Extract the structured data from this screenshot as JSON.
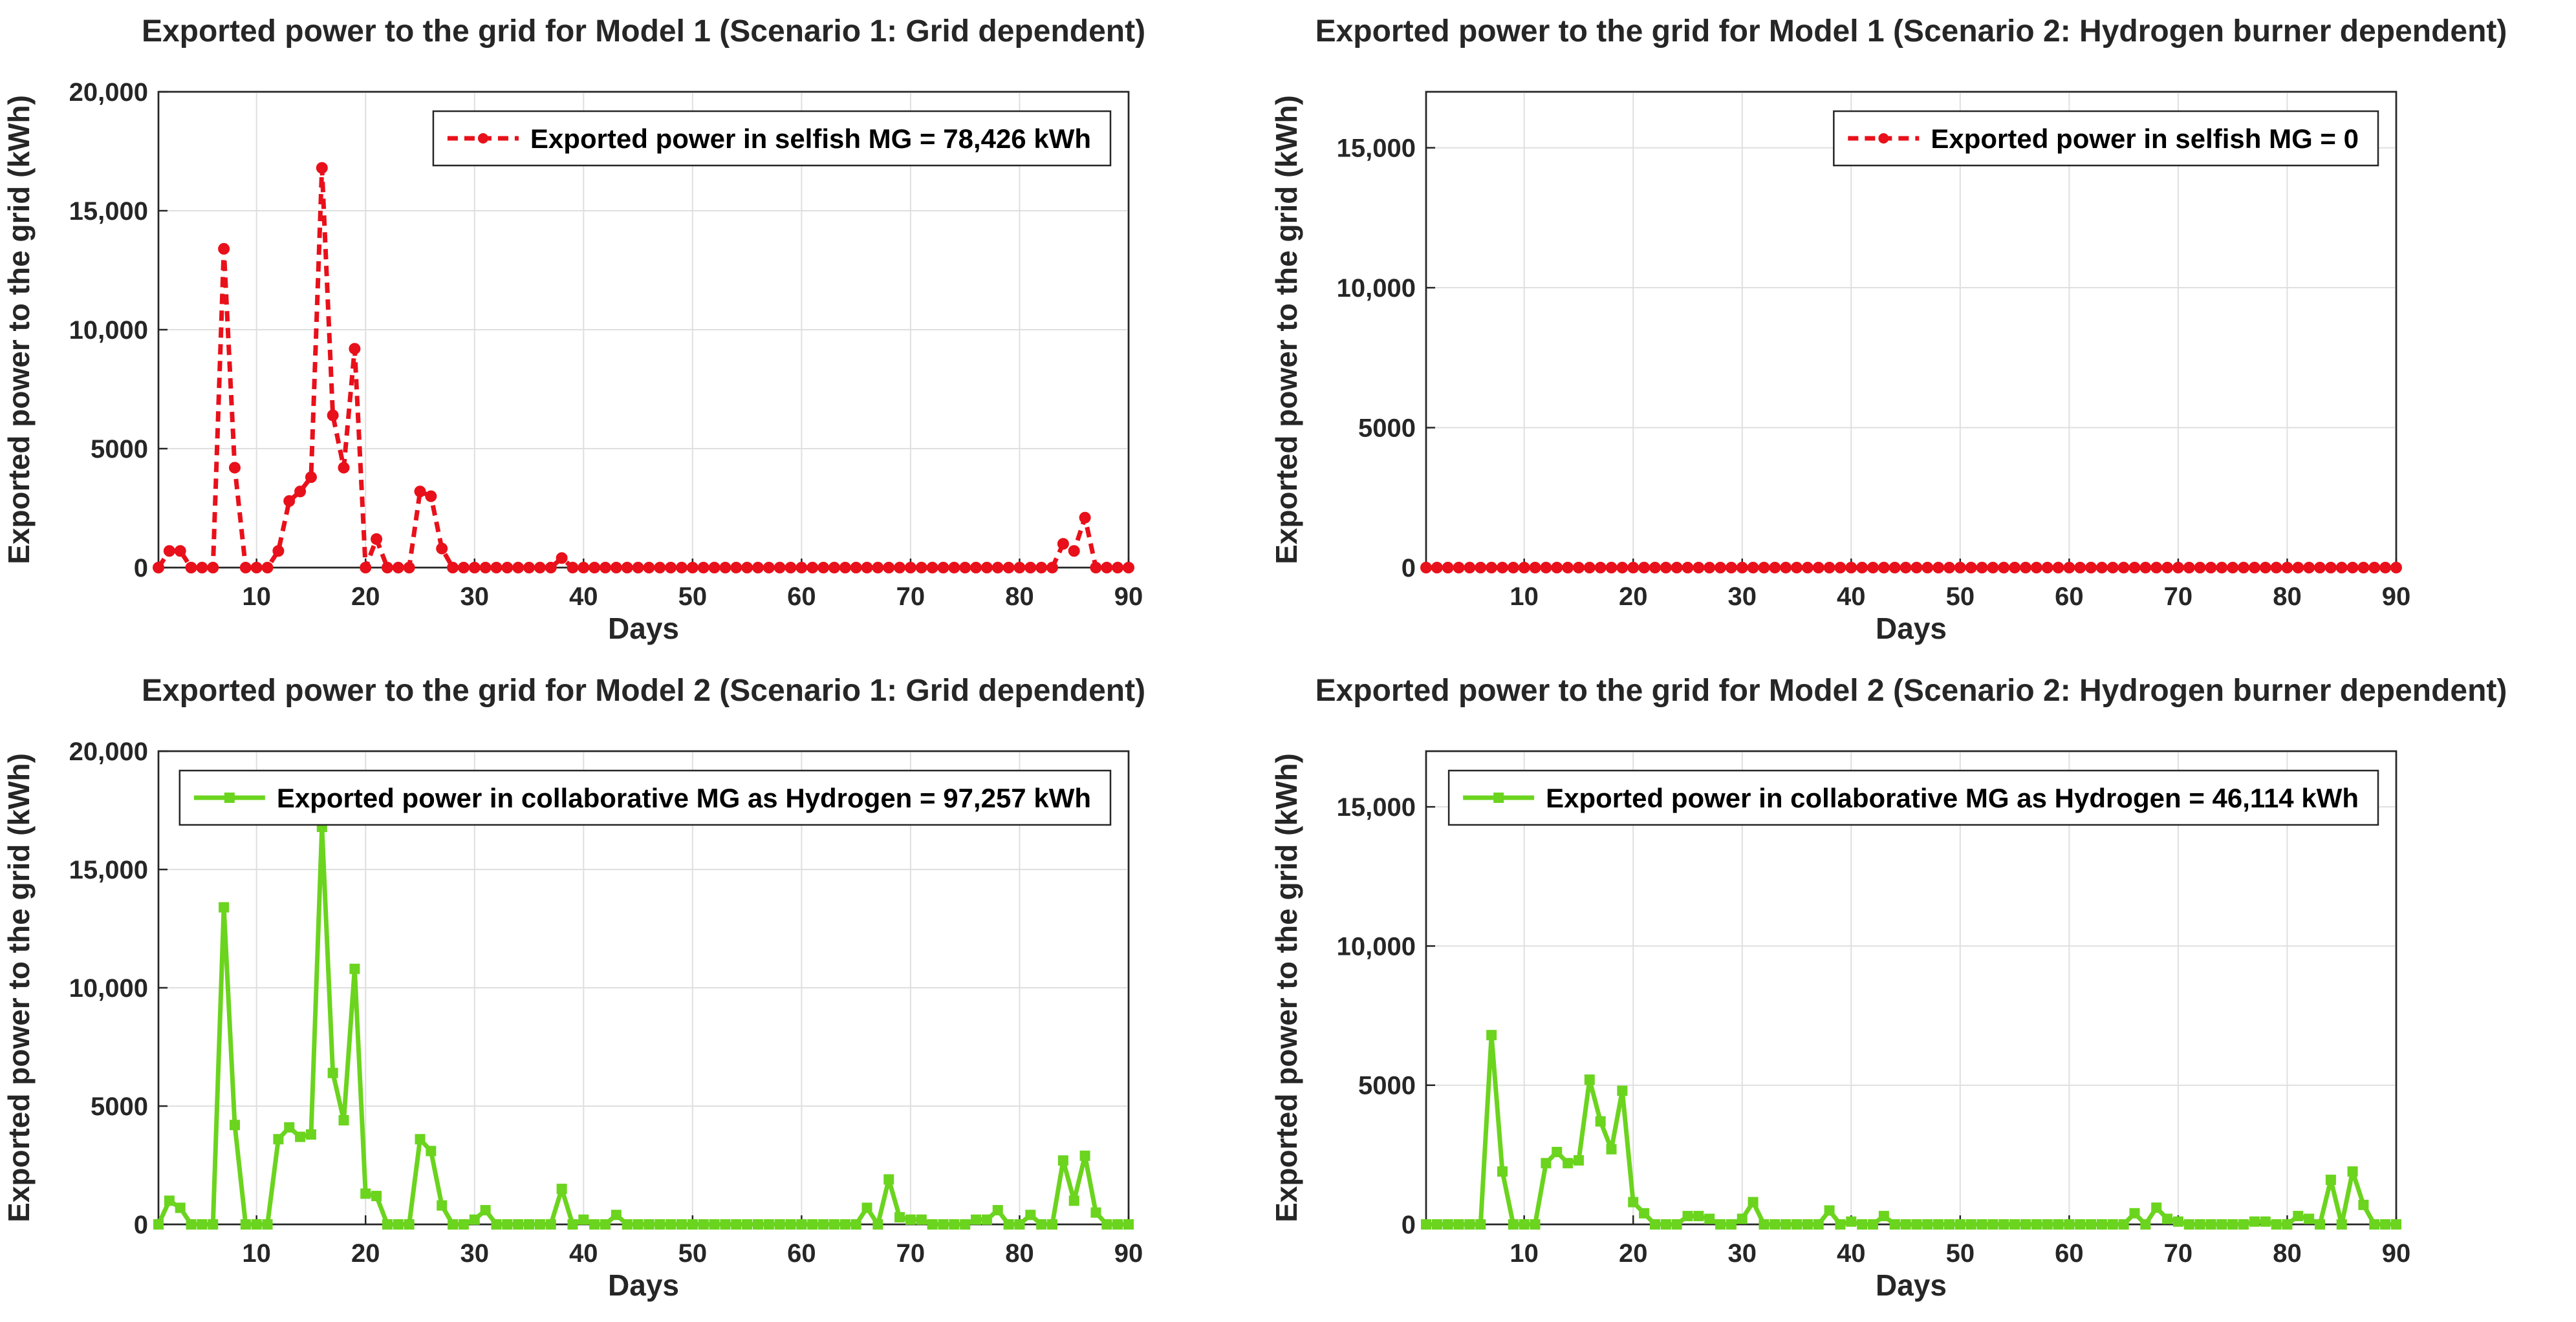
{
  "chart_data": [
    {
      "type": "line",
      "title": "Exported power to the grid for Model 1 (Scenario 1: Grid dependent)",
      "xlabel": "Days",
      "ylabel": "Exported power to the grid (kWh)",
      "xlim": [
        1,
        90
      ],
      "ylim": [
        0,
        20000
      ],
      "xticks": [
        10,
        20,
        30,
        40,
        50,
        60,
        70,
        80,
        90
      ],
      "yticks": [
        0,
        5000,
        10000,
        15000,
        20000
      ],
      "ytick_labels": [
        "0",
        "5000",
        "10,000",
        "15,000",
        "20,000"
      ],
      "grid": true,
      "legend_position": "top-right",
      "series": [
        {
          "name": "Exported power in selfish MG = 78,426 kWh",
          "color": "#e8101a",
          "line_style": "dashed",
          "marker": "circle",
          "values": [
            0,
            700,
            700,
            0,
            0,
            0,
            13400,
            4200,
            0,
            0,
            0,
            700,
            2800,
            3200,
            3800,
            16800,
            6400,
            4200,
            9200,
            0,
            1200,
            0,
            0,
            0,
            3200,
            3000,
            800,
            0,
            0,
            0,
            0,
            0,
            0,
            0,
            0,
            0,
            0,
            400,
            0,
            0,
            0,
            0,
            0,
            0,
            0,
            0,
            0,
            0,
            0,
            0,
            0,
            0,
            0,
            0,
            0,
            0,
            0,
            0,
            0,
            0,
            0,
            0,
            0,
            0,
            0,
            0,
            0,
            0,
            0,
            0,
            0,
            0,
            0,
            0,
            0,
            0,
            0,
            0,
            0,
            0,
            0,
            0,
            0,
            1000,
            700,
            2100,
            0,
            0,
            0,
            0
          ]
        }
      ]
    },
    {
      "type": "line",
      "title": "Exported power to the grid for Model 1 (Scenario 2: Hydrogen burner dependent)",
      "xlabel": "Days",
      "ylabel": "Exported power to the grid (kWh)",
      "xlim": [
        1,
        90
      ],
      "ylim": [
        0,
        17000
      ],
      "xticks": [
        10,
        20,
        30,
        40,
        50,
        60,
        70,
        80,
        90
      ],
      "yticks": [
        0,
        5000,
        10000,
        15000
      ],
      "ytick_labels": [
        "0",
        "5000",
        "10,000",
        "15,000"
      ],
      "grid": true,
      "legend_position": "top-right",
      "series": [
        {
          "name": "Exported power in selfish MG = 0",
          "color": "#e8101a",
          "line_style": "dashed",
          "marker": "circle",
          "values": [
            0,
            0,
            0,
            0,
            0,
            0,
            0,
            0,
            0,
            0,
            0,
            0,
            0,
            0,
            0,
            0,
            0,
            0,
            0,
            0,
            0,
            0,
            0,
            0,
            0,
            0,
            0,
            0,
            0,
            0,
            0,
            0,
            0,
            0,
            0,
            0,
            0,
            0,
            0,
            0,
            0,
            0,
            0,
            0,
            0,
            0,
            0,
            0,
            0,
            0,
            0,
            0,
            0,
            0,
            0,
            0,
            0,
            0,
            0,
            0,
            0,
            0,
            0,
            0,
            0,
            0,
            0,
            0,
            0,
            0,
            0,
            0,
            0,
            0,
            0,
            0,
            0,
            0,
            0,
            0,
            0,
            0,
            0,
            0,
            0,
            0,
            0,
            0,
            0,
            0
          ]
        }
      ]
    },
    {
      "type": "line",
      "title": "Exported power to the grid for Model 2 (Scenario 1: Grid dependent)",
      "xlabel": "Days",
      "ylabel": "Exported power to the grid (kWh)",
      "xlim": [
        1,
        90
      ],
      "ylim": [
        0,
        20000
      ],
      "xticks": [
        10,
        20,
        30,
        40,
        50,
        60,
        70,
        80,
        90
      ],
      "yticks": [
        0,
        5000,
        10000,
        15000,
        20000
      ],
      "ytick_labels": [
        "0",
        "5000",
        "10,000",
        "15,000",
        "20,000"
      ],
      "grid": true,
      "legend_position": "top-right",
      "series": [
        {
          "name": "Exported power in collaborative MG as Hydrogen = 97,257 kWh",
          "color": "#6bd41e",
          "line_style": "solid",
          "marker": "square",
          "values": [
            0,
            1000,
            700,
            0,
            0,
            0,
            13400,
            4200,
            0,
            0,
            0,
            3600,
            4100,
            3700,
            3800,
            16800,
            6400,
            4400,
            10800,
            1300,
            1200,
            0,
            0,
            0,
            3600,
            3100,
            800,
            0,
            0,
            200,
            600,
            0,
            0,
            0,
            0,
            0,
            0,
            1500,
            0,
            200,
            0,
            0,
            400,
            0,
            0,
            0,
            0,
            0,
            0,
            0,
            0,
            0,
            0,
            0,
            0,
            0,
            0,
            0,
            0,
            0,
            0,
            0,
            0,
            0,
            0,
            700,
            0,
            1900,
            300,
            200,
            200,
            0,
            0,
            0,
            0,
            200,
            200,
            600,
            0,
            0,
            400,
            0,
            0,
            2700,
            1000,
            2900,
            500,
            0,
            0,
            0
          ]
        }
      ]
    },
    {
      "type": "line",
      "title": "Exported power to the grid for Model 2 (Scenario 2: Hydrogen burner dependent)",
      "xlabel": "Days",
      "ylabel": "Exported power to the grid (kWh)",
      "xlim": [
        1,
        90
      ],
      "ylim": [
        0,
        17000
      ],
      "xticks": [
        10,
        20,
        30,
        40,
        50,
        60,
        70,
        80,
        90
      ],
      "yticks": [
        0,
        5000,
        10000,
        15000
      ],
      "ytick_labels": [
        "0",
        "5000",
        "10,000",
        "15,000"
      ],
      "grid": true,
      "legend_position": "top-right",
      "series": [
        {
          "name": "Exported power in collaborative MG as Hydrogen = 46,114 kWh",
          "color": "#6bd41e",
          "line_style": "solid",
          "marker": "square",
          "values": [
            0,
            0,
            0,
            0,
            0,
            0,
            6800,
            1900,
            0,
            0,
            0,
            2200,
            2600,
            2200,
            2300,
            5200,
            3700,
            2700,
            4800,
            800,
            400,
            0,
            0,
            0,
            300,
            300,
            200,
            0,
            0,
            200,
            800,
            0,
            0,
            0,
            0,
            0,
            0,
            500,
            0,
            100,
            0,
            0,
            300,
            0,
            0,
            0,
            0,
            0,
            0,
            0,
            0,
            0,
            0,
            0,
            0,
            0,
            0,
            0,
            0,
            0,
            0,
            0,
            0,
            0,
            0,
            400,
            0,
            600,
            200,
            100,
            0,
            0,
            0,
            0,
            0,
            0,
            100,
            100,
            0,
            0,
            300,
            200,
            0,
            1600,
            0,
            1900,
            700,
            0,
            0,
            0
          ]
        }
      ]
    }
  ]
}
